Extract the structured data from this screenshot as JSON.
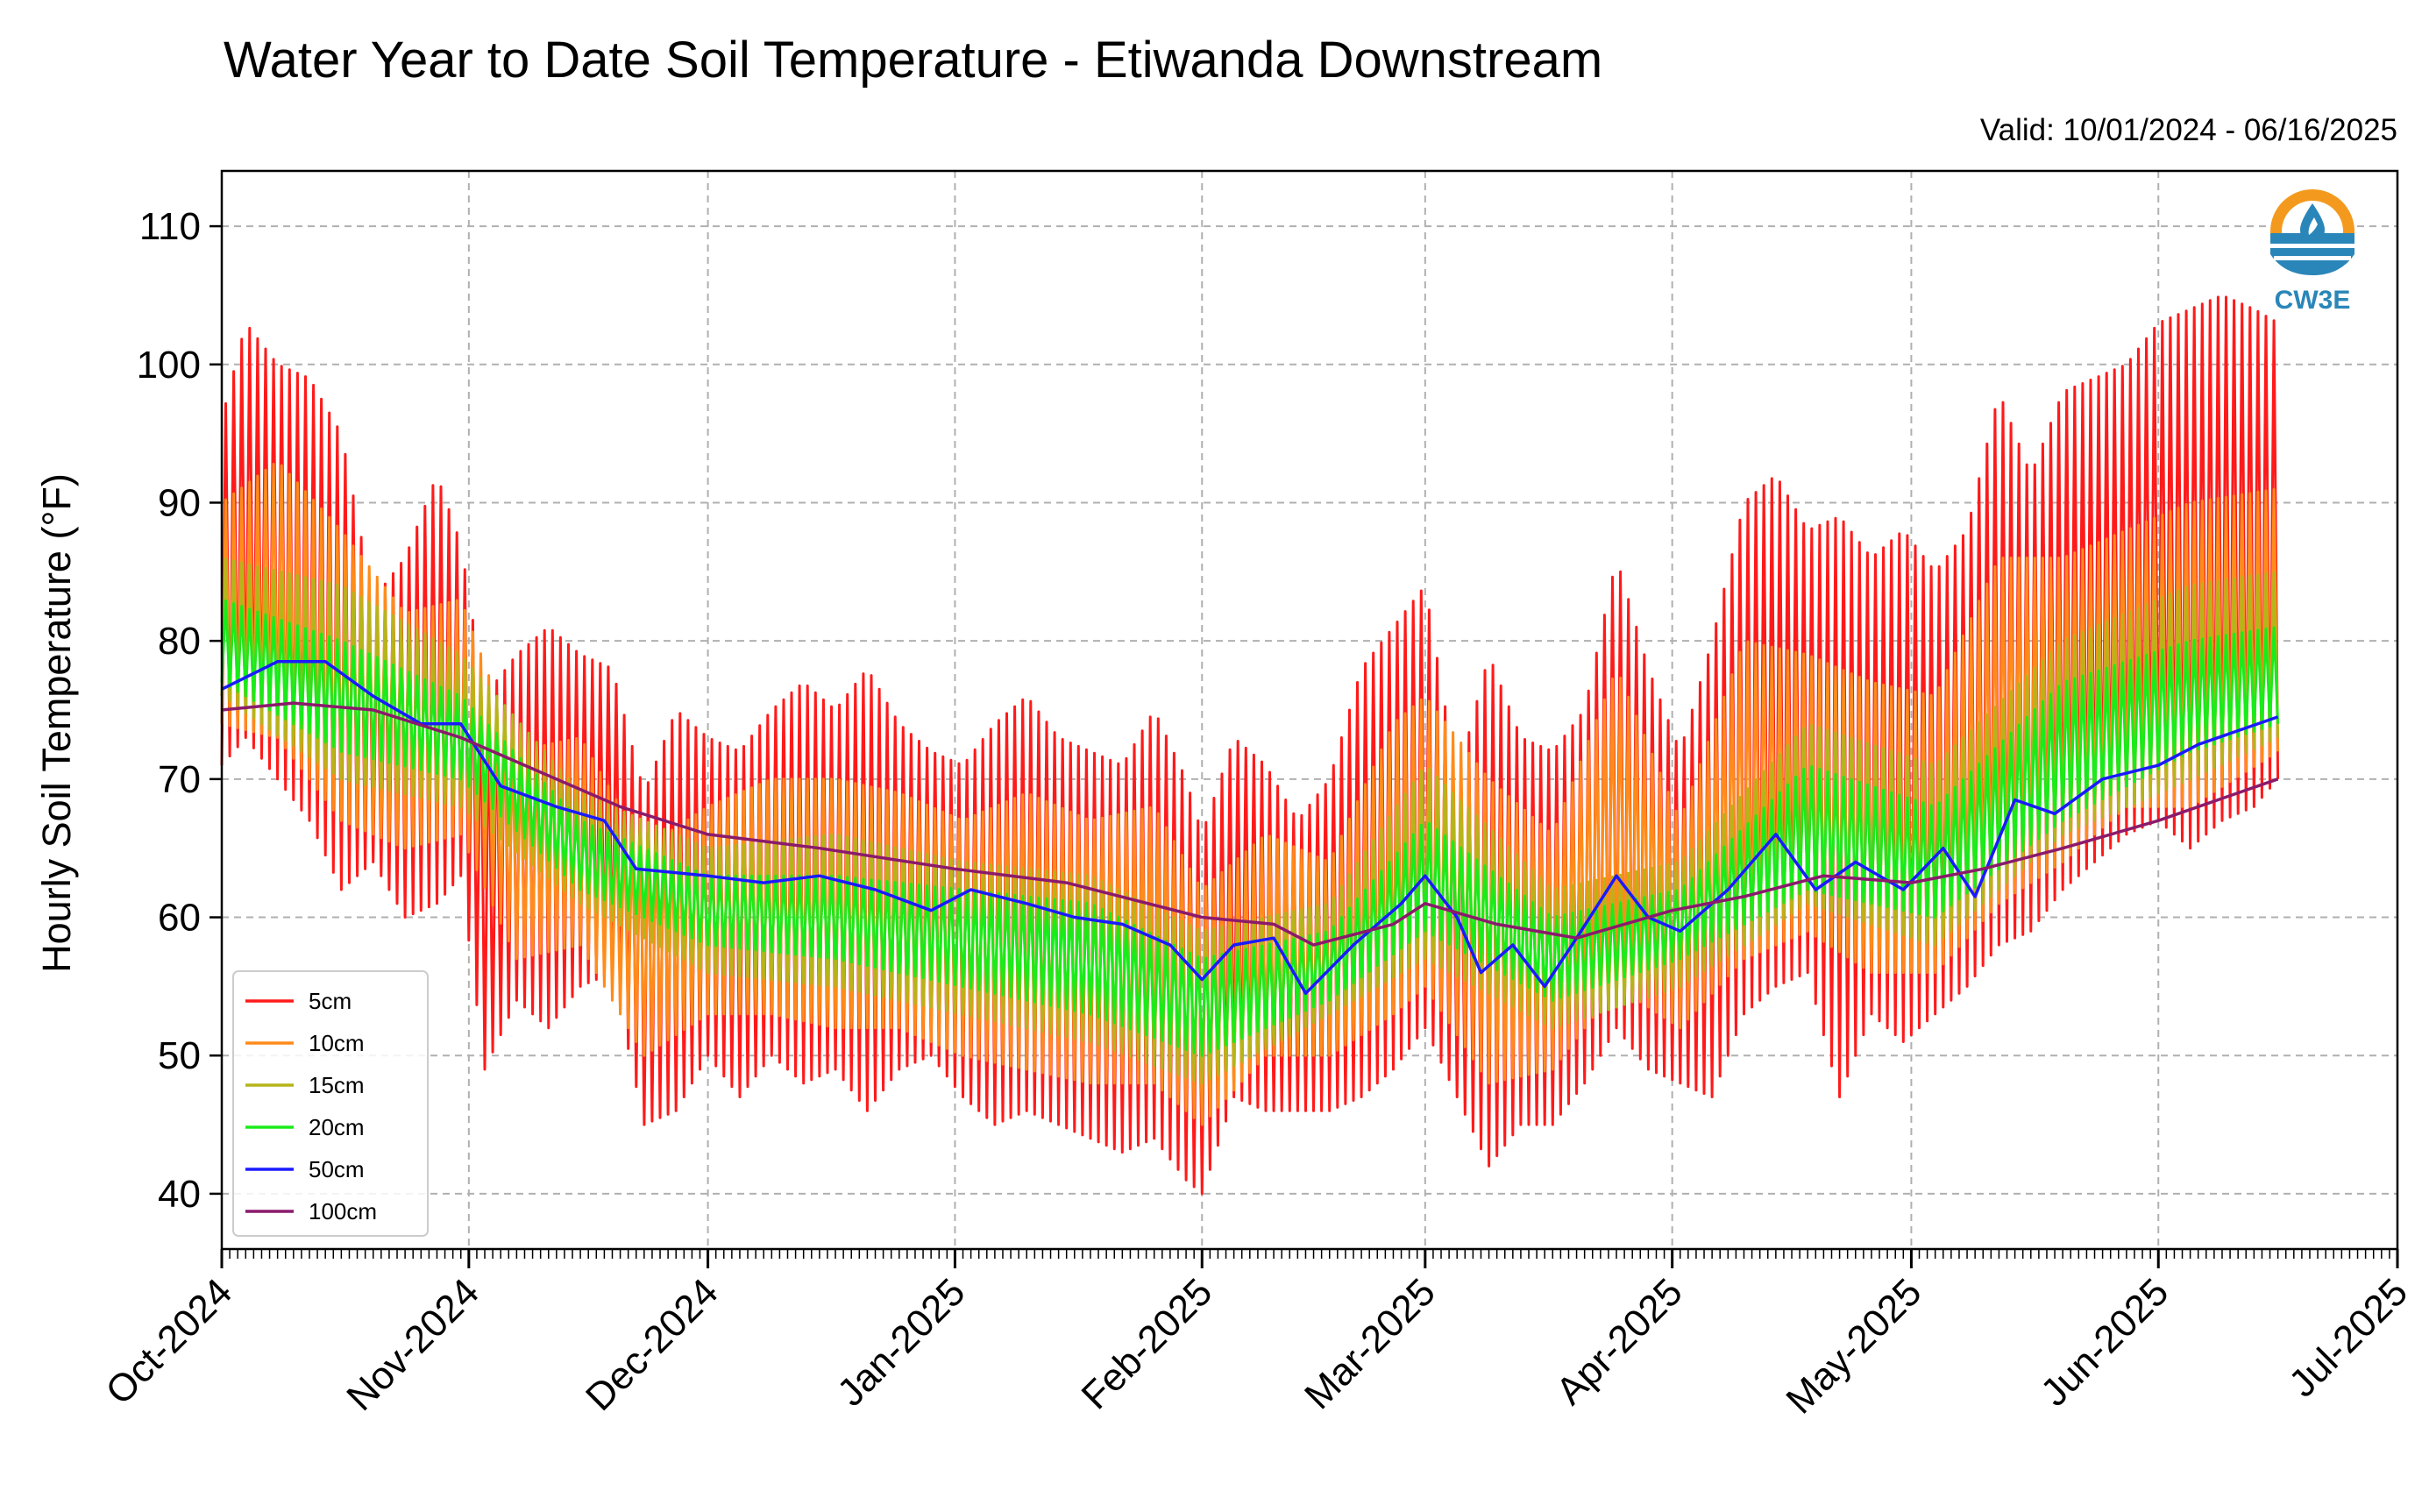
{
  "chart_data": {
    "type": "line",
    "title": "Water Year to Date Soil Temperature - Etiwanda Downstream",
    "subtitle": "Valid: 10/01/2024 - 06/16/2025",
    "ylabel": "Hourly Soil Temperature (°F)",
    "xlabel": "",
    "ylim": [
      36,
      114
    ],
    "yticks": [
      40,
      50,
      60,
      70,
      80,
      90,
      100,
      110
    ],
    "xlim": [
      "2024-10-01",
      "2025-07-01"
    ],
    "xticks": [
      {
        "date": "2024-10-01",
        "label": "Oct-2024"
      },
      {
        "date": "2024-11-01",
        "label": "Nov-2024"
      },
      {
        "date": "2024-12-01",
        "label": "Dec-2024"
      },
      {
        "date": "2025-01-01",
        "label": "Jan-2025"
      },
      {
        "date": "2025-02-01",
        "label": "Feb-2025"
      },
      {
        "date": "2025-03-01",
        "label": "Mar-2025"
      },
      {
        "date": "2025-04-01",
        "label": "Apr-2025"
      },
      {
        "date": "2025-05-01",
        "label": "May-2025"
      },
      {
        "date": "2025-06-01",
        "label": "Jun-2025"
      },
      {
        "date": "2025-07-01",
        "label": "Jul-2025"
      }
    ],
    "grid": true,
    "legend_position": "lower-left",
    "logo": {
      "text": "CW3E"
    },
    "series": [
      {
        "name": "5cm",
        "color": "#ff1a1a",
        "daily_min_max": [
          [
            "2024-10-01",
            71,
            96
          ],
          [
            "2024-10-04",
            73,
            103
          ],
          [
            "2024-10-08",
            70,
            100
          ],
          [
            "2024-10-12",
            67,
            99
          ],
          [
            "2024-10-16",
            62,
            95
          ],
          [
            "2024-10-20",
            64,
            83
          ],
          [
            "2024-10-24",
            60,
            86
          ],
          [
            "2024-10-28",
            61,
            92
          ],
          [
            "2024-10-31",
            63,
            87
          ],
          [
            "2024-11-03",
            49,
            76
          ],
          [
            "2024-11-07",
            54,
            79
          ],
          [
            "2024-11-11",
            52,
            81
          ],
          [
            "2024-11-15",
            55,
            79
          ],
          [
            "2024-11-19",
            56,
            78
          ],
          [
            "2024-11-23",
            45,
            69
          ],
          [
            "2024-11-27",
            46,
            75
          ],
          [
            "2024-12-01",
            50,
            73
          ],
          [
            "2024-12-05",
            47,
            72
          ],
          [
            "2024-12-09",
            50,
            75
          ],
          [
            "2024-12-13",
            48,
            77
          ],
          [
            "2024-12-17",
            49,
            75
          ],
          [
            "2024-12-21",
            46,
            78
          ],
          [
            "2024-12-25",
            49,
            74
          ],
          [
            "2024-12-29",
            50,
            72
          ],
          [
            "2025-01-02",
            47,
            71
          ],
          [
            "2025-01-06",
            45,
            74
          ],
          [
            "2025-01-10",
            46,
            76
          ],
          [
            "2025-01-14",
            45,
            73
          ],
          [
            "2025-01-18",
            44,
            72
          ],
          [
            "2025-01-22",
            43,
            71
          ],
          [
            "2025-01-26",
            44,
            75
          ],
          [
            "2025-01-30",
            41,
            70
          ],
          [
            "2025-02-01",
            40,
            66
          ],
          [
            "2025-02-05",
            47,
            73
          ],
          [
            "2025-02-09",
            46,
            71
          ],
          [
            "2025-02-13",
            46,
            67
          ],
          [
            "2025-02-17",
            46,
            70
          ],
          [
            "2025-02-21",
            47,
            78
          ],
          [
            "2025-02-25",
            49,
            81
          ],
          [
            "2025-03-01",
            52,
            84
          ],
          [
            "2025-03-05",
            47,
            70
          ],
          [
            "2025-03-09",
            42,
            79
          ],
          [
            "2025-03-13",
            45,
            73
          ],
          [
            "2025-03-17",
            45,
            72
          ],
          [
            "2025-03-21",
            48,
            75
          ],
          [
            "2025-03-25",
            52,
            86
          ],
          [
            "2025-03-29",
            49,
            78
          ],
          [
            "2025-04-02",
            48,
            72
          ],
          [
            "2025-04-06",
            47,
            80
          ],
          [
            "2025-04-10",
            53,
            90
          ],
          [
            "2025-04-14",
            55,
            92
          ],
          [
            "2025-04-18",
            56,
            88
          ],
          [
            "2025-04-22",
            47,
            89
          ],
          [
            "2025-04-26",
            53,
            86
          ],
          [
            "2025-04-30",
            51,
            88
          ],
          [
            "2025-05-04",
            53,
            85
          ],
          [
            "2025-05-08",
            55,
            88
          ],
          [
            "2025-05-12",
            58,
            98
          ],
          [
            "2025-05-16",
            59,
            92
          ],
          [
            "2025-05-20",
            62,
            98
          ],
          [
            "2025-05-24",
            64,
            99
          ],
          [
            "2025-05-28",
            66,
            100
          ],
          [
            "2025-06-01",
            67,
            103
          ],
          [
            "2025-06-05",
            65,
            104
          ],
          [
            "2025-06-09",
            67,
            105
          ],
          [
            "2025-06-13",
            68,
            104
          ],
          [
            "2025-06-16",
            70,
            103
          ]
        ]
      },
      {
        "name": "10cm",
        "color": "#ff8c1a",
        "daily_min_max": [
          [
            "2024-10-01",
            74,
            90
          ],
          [
            "2024-10-08",
            73,
            93
          ],
          [
            "2024-10-16",
            67,
            88
          ],
          [
            "2024-10-24",
            65,
            82
          ],
          [
            "2024-10-31",
            66,
            83
          ],
          [
            "2024-11-07",
            57,
            72
          ],
          [
            "2024-11-15",
            58,
            73
          ],
          [
            "2024-11-23",
            50,
            65
          ],
          [
            "2024-12-01",
            53,
            68
          ],
          [
            "2024-12-09",
            53,
            70
          ],
          [
            "2024-12-17",
            52,
            70
          ],
          [
            "2024-12-25",
            52,
            69
          ],
          [
            "2025-01-02",
            50,
            67
          ],
          [
            "2025-01-10",
            49,
            69
          ],
          [
            "2025-01-18",
            48,
            67
          ],
          [
            "2025-01-26",
            48,
            68
          ],
          [
            "2025-02-01",
            45,
            62
          ],
          [
            "2025-02-09",
            50,
            66
          ],
          [
            "2025-02-17",
            50,
            64
          ],
          [
            "2025-02-25",
            53,
            74
          ],
          [
            "2025-03-01",
            55,
            76
          ],
          [
            "2025-03-09",
            48,
            70
          ],
          [
            "2025-03-17",
            49,
            66
          ],
          [
            "2025-03-25",
            55,
            78
          ],
          [
            "2025-04-02",
            52,
            67
          ],
          [
            "2025-04-10",
            57,
            80
          ],
          [
            "2025-04-18",
            59,
            79
          ],
          [
            "2025-04-26",
            56,
            77
          ],
          [
            "2025-05-04",
            56,
            76
          ],
          [
            "2025-05-12",
            61,
            86
          ],
          [
            "2025-05-20",
            64,
            86
          ],
          [
            "2025-05-28",
            68,
            88
          ],
          [
            "2025-06-05",
            68,
            90
          ],
          [
            "2025-06-16",
            72,
            91
          ]
        ]
      },
      {
        "name": "15cm",
        "color": "#b5b51a",
        "daily_min_max": [
          [
            "2024-10-01",
            76,
            86
          ],
          [
            "2024-10-16",
            70,
            84
          ],
          [
            "2024-10-31",
            68,
            79
          ],
          [
            "2024-11-15",
            61,
            69
          ],
          [
            "2024-12-01",
            56,
            65
          ],
          [
            "2024-12-17",
            55,
            66
          ],
          [
            "2025-01-02",
            53,
            64
          ],
          [
            "2025-01-18",
            51,
            63
          ],
          [
            "2025-02-01",
            48,
            59
          ],
          [
            "2025-02-17",
            53,
            61
          ],
          [
            "2025-03-01",
            57,
            71
          ],
          [
            "2025-03-17",
            52,
            62
          ],
          [
            "2025-04-02",
            55,
            64
          ],
          [
            "2025-04-18",
            61,
            74
          ],
          [
            "2025-05-04",
            58,
            71
          ],
          [
            "2025-05-20",
            66,
            80
          ],
          [
            "2025-06-05",
            70,
            84
          ],
          [
            "2025-06-16",
            73,
            85
          ]
        ]
      },
      {
        "name": "20cm",
        "color": "#1aeb1a",
        "daily_min_max": [
          [
            "2024-10-01",
            77,
            83
          ],
          [
            "2024-10-16",
            72,
            80
          ],
          [
            "2024-10-31",
            70,
            76
          ],
          [
            "2024-11-15",
            62,
            67
          ],
          [
            "2024-12-01",
            58,
            63
          ],
          [
            "2024-12-17",
            57,
            63
          ],
          [
            "2025-01-02",
            55,
            62
          ],
          [
            "2025-01-18",
            53,
            61
          ],
          [
            "2025-02-01",
            50,
            57
          ],
          [
            "2025-02-17",
            54,
            59
          ],
          [
            "2025-03-01",
            59,
            67
          ],
          [
            "2025-03-17",
            54,
            60
          ],
          [
            "2025-04-02",
            57,
            62
          ],
          [
            "2025-04-18",
            62,
            71
          ],
          [
            "2025-05-04",
            60,
            68
          ],
          [
            "2025-05-20",
            67,
            77
          ],
          [
            "2025-06-05",
            72,
            80
          ],
          [
            "2025-06-16",
            74,
            81
          ]
        ]
      },
      {
        "name": "50cm",
        "color": "#1a1aff",
        "points": [
          [
            "2024-10-01",
            76.5
          ],
          [
            "2024-10-08",
            78.5
          ],
          [
            "2024-10-14",
            78.5
          ],
          [
            "2024-10-20",
            76
          ],
          [
            "2024-10-26",
            74
          ],
          [
            "2024-10-31",
            74
          ],
          [
            "2024-11-05",
            69.5
          ],
          [
            "2024-11-12",
            68
          ],
          [
            "2024-11-18",
            67
          ],
          [
            "2024-11-22",
            63.5
          ],
          [
            "2024-12-01",
            63
          ],
          [
            "2024-12-08",
            62.5
          ],
          [
            "2024-12-15",
            63
          ],
          [
            "2024-12-22",
            62
          ],
          [
            "2024-12-29",
            60.5
          ],
          [
            "2025-01-03",
            62
          ],
          [
            "2025-01-10",
            61
          ],
          [
            "2025-01-16",
            60
          ],
          [
            "2025-01-22",
            59.5
          ],
          [
            "2025-01-28",
            58
          ],
          [
            "2025-02-01",
            55.5
          ],
          [
            "2025-02-05",
            58
          ],
          [
            "2025-02-10",
            58.5
          ],
          [
            "2025-02-14",
            54.5
          ],
          [
            "2025-02-20",
            58
          ],
          [
            "2025-02-26",
            61
          ],
          [
            "2025-03-01",
            63
          ],
          [
            "2025-03-05",
            60
          ],
          [
            "2025-03-08",
            56
          ],
          [
            "2025-03-12",
            58
          ],
          [
            "2025-03-16",
            55
          ],
          [
            "2025-03-20",
            58.5
          ],
          [
            "2025-03-25",
            63
          ],
          [
            "2025-03-29",
            60
          ],
          [
            "2025-04-02",
            59
          ],
          [
            "2025-04-08",
            62
          ],
          [
            "2025-04-14",
            66
          ],
          [
            "2025-04-19",
            62
          ],
          [
            "2025-04-24",
            64
          ],
          [
            "2025-04-30",
            62
          ],
          [
            "2025-05-05",
            65
          ],
          [
            "2025-05-09",
            61.5
          ],
          [
            "2025-05-14",
            68.5
          ],
          [
            "2025-05-19",
            67.5
          ],
          [
            "2025-05-25",
            70
          ],
          [
            "2025-06-01",
            71
          ],
          [
            "2025-06-06",
            72.5
          ],
          [
            "2025-06-16",
            74.5
          ]
        ]
      },
      {
        "name": "100cm",
        "color": "#8b1a6b",
        "points": [
          [
            "2024-10-01",
            75
          ],
          [
            "2024-10-10",
            75.5
          ],
          [
            "2024-10-20",
            75
          ],
          [
            "2024-10-31",
            73
          ],
          [
            "2024-11-10",
            70.5
          ],
          [
            "2024-11-20",
            68
          ],
          [
            "2024-12-01",
            66
          ],
          [
            "2024-12-15",
            65
          ],
          [
            "2025-01-01",
            63.5
          ],
          [
            "2025-01-15",
            62.5
          ],
          [
            "2025-02-01",
            60
          ],
          [
            "2025-02-10",
            59.5
          ],
          [
            "2025-02-15",
            58
          ],
          [
            "2025-02-25",
            59.5
          ],
          [
            "2025-03-01",
            61
          ],
          [
            "2025-03-10",
            59.5
          ],
          [
            "2025-03-20",
            58.5
          ],
          [
            "2025-04-01",
            60.5
          ],
          [
            "2025-04-10",
            61.5
          ],
          [
            "2025-04-20",
            63
          ],
          [
            "2025-05-01",
            62.5
          ],
          [
            "2025-05-10",
            63.5
          ],
          [
            "2025-05-20",
            65
          ],
          [
            "2025-06-01",
            67
          ],
          [
            "2025-06-16",
            70
          ]
        ]
      }
    ]
  }
}
